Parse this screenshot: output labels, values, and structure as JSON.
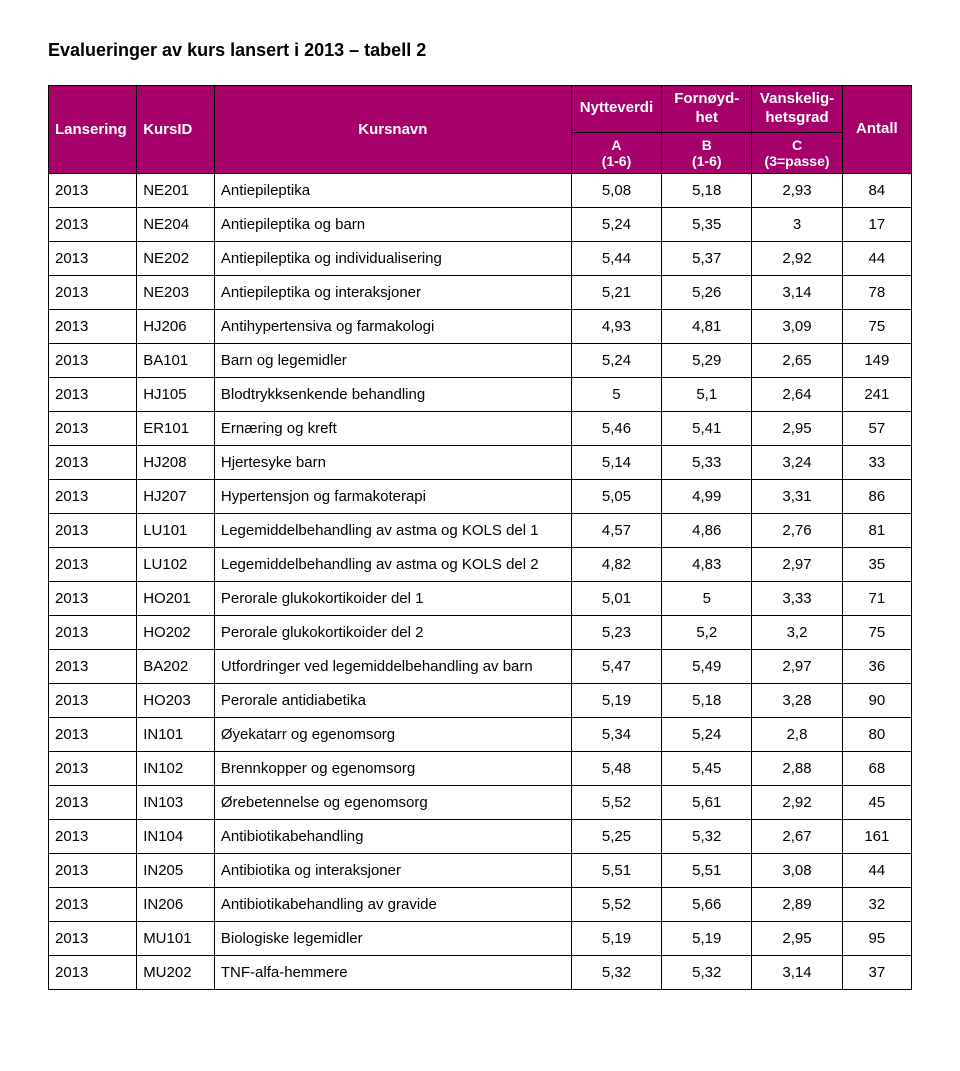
{
  "title": "Evalueringer av kurs lansert i 2013 – tabell 2",
  "colors": {
    "header_bg": "#a6006b",
    "header_fg": "#ffffff",
    "border": "#000000",
    "page_bg": "#ffffff",
    "text": "#000000"
  },
  "header": {
    "lansering": "Lansering",
    "kursid": "KursID",
    "kursnavn": "Kursnavn",
    "nytteverdi": "Nytteverdi",
    "fornoydhet": "Fornøyd-\nhet",
    "vanskelighetsgrad": "Vanskelig-\nhetsgrad",
    "antall": "Antall",
    "sub_a": "A\n(1-6)",
    "sub_b": "B\n(1-6)",
    "sub_c": "C\n(3=passe)"
  },
  "rows": [
    {
      "lansering": "2013",
      "kursid": "NE201",
      "kursnavn": "Antiepileptika",
      "a": "5,08",
      "b": "5,18",
      "c": "2,93",
      "antall": "84"
    },
    {
      "lansering": "2013",
      "kursid": "NE204",
      "kursnavn": "Antiepileptika og barn",
      "a": "5,24",
      "b": "5,35",
      "c": "3",
      "antall": "17"
    },
    {
      "lansering": "2013",
      "kursid": "NE202",
      "kursnavn": "Antiepileptika og individualisering",
      "a": "5,44",
      "b": "5,37",
      "c": "2,92",
      "antall": "44"
    },
    {
      "lansering": "2013",
      "kursid": "NE203",
      "kursnavn": "Antiepileptika og interaksjoner",
      "a": "5,21",
      "b": "5,26",
      "c": "3,14",
      "antall": "78"
    },
    {
      "lansering": "2013",
      "kursid": "HJ206",
      "kursnavn": "Antihypertensiva og farmakologi",
      "a": "4,93",
      "b": "4,81",
      "c": "3,09",
      "antall": "75"
    },
    {
      "lansering": "2013",
      "kursid": "BA101",
      "kursnavn": "Barn og legemidler",
      "a": "5,24",
      "b": "5,29",
      "c": "2,65",
      "antall": "149"
    },
    {
      "lansering": "2013",
      "kursid": "HJ105",
      "kursnavn": "Blodtrykksenkende behandling",
      "a": "5",
      "b": "5,1",
      "c": "2,64",
      "antall": "241"
    },
    {
      "lansering": "2013",
      "kursid": "ER101",
      "kursnavn": "Ernæring og kreft",
      "a": "5,46",
      "b": "5,41",
      "c": "2,95",
      "antall": "57"
    },
    {
      "lansering": "2013",
      "kursid": "HJ208",
      "kursnavn": "Hjertesyke barn",
      "a": "5,14",
      "b": "5,33",
      "c": "3,24",
      "antall": "33"
    },
    {
      "lansering": "2013",
      "kursid": "HJ207",
      "kursnavn": "Hypertensjon og farmakoterapi",
      "a": "5,05",
      "b": "4,99",
      "c": "3,31",
      "antall": "86"
    },
    {
      "lansering": "2013",
      "kursid": "LU101",
      "kursnavn": "Legemiddelbehandling av astma og KOLS del 1",
      "a": "4,57",
      "b": "4,86",
      "c": "2,76",
      "antall": "81"
    },
    {
      "lansering": "2013",
      "kursid": "LU102",
      "kursnavn": "Legemiddelbehandling av astma og KOLS del 2",
      "a": "4,82",
      "b": "4,83",
      "c": "2,97",
      "antall": "35"
    },
    {
      "lansering": "2013",
      "kursid": "HO201",
      "kursnavn": "Perorale glukokortikoider del 1",
      "a": "5,01",
      "b": "5",
      "c": "3,33",
      "antall": "71"
    },
    {
      "lansering": "2013",
      "kursid": "HO202",
      "kursnavn": "Perorale glukokortikoider del 2",
      "a": "5,23",
      "b": "5,2",
      "c": "3,2",
      "antall": "75"
    },
    {
      "lansering": "2013",
      "kursid": "BA202",
      "kursnavn": "Utfordringer ved legemiddelbehandling av barn",
      "a": "5,47",
      "b": "5,49",
      "c": "2,97",
      "antall": "36"
    },
    {
      "lansering": "2013",
      "kursid": "HO203",
      "kursnavn": "Perorale antidiabetika",
      "a": "5,19",
      "b": "5,18",
      "c": "3,28",
      "antall": "90"
    },
    {
      "lansering": "2013",
      "kursid": "IN101",
      "kursnavn": "Øyekatarr og egenomsorg",
      "a": "5,34",
      "b": "5,24",
      "c": "2,8",
      "antall": "80"
    },
    {
      "lansering": "2013",
      "kursid": "IN102",
      "kursnavn": "Brennkopper og egenomsorg",
      "a": "5,48",
      "b": "5,45",
      "c": "2,88",
      "antall": "68"
    },
    {
      "lansering": "2013",
      "kursid": "IN103",
      "kursnavn": "Ørebetennelse og egenomsorg",
      "a": "5,52",
      "b": "5,61",
      "c": "2,92",
      "antall": "45"
    },
    {
      "lansering": "2013",
      "kursid": "IN104",
      "kursnavn": "Antibiotikabehandling",
      "a": "5,25",
      "b": "5,32",
      "c": "2,67",
      "antall": "161"
    },
    {
      "lansering": "2013",
      "kursid": "IN205",
      "kursnavn": "Antibiotika og interaksjoner",
      "a": "5,51",
      "b": "5,51",
      "c": "3,08",
      "antall": "44"
    },
    {
      "lansering": "2013",
      "kursid": "IN206",
      "kursnavn": "Antibiotikabehandling av gravide",
      "a": "5,52",
      "b": "5,66",
      "c": "2,89",
      "antall": "32"
    },
    {
      "lansering": "2013",
      "kursid": "MU101",
      "kursnavn": " Biologiske legemidler",
      "a": "5,19",
      "b": "5,19",
      "c": "2,95",
      "antall": "95"
    },
    {
      "lansering": "2013",
      "kursid": "MU202",
      "kursnavn": "TNF-alfa-hemmere",
      "a": "5,32",
      "b": "5,32",
      "c": "3,14",
      "antall": "37"
    }
  ]
}
